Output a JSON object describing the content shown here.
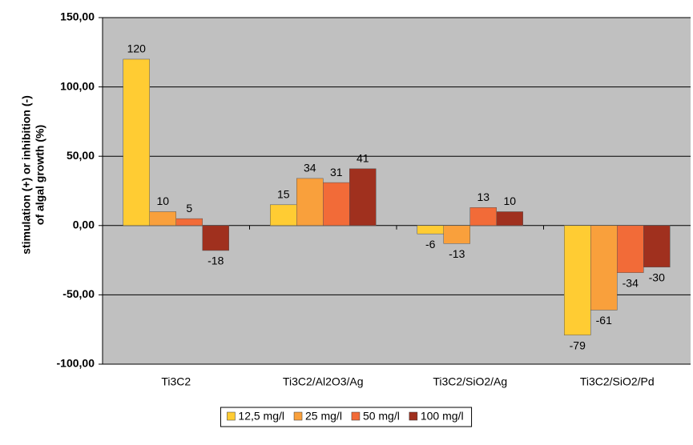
{
  "chart_data": {
    "type": "bar",
    "ylabel": [
      "stimulation (+) or inhibition (-)",
      "of algal growth (%)"
    ],
    "categories": [
      "Ti3C2",
      "Ti3C2/Al2O3/Ag",
      "Ti3C2/SiO2/Ag",
      "Ti3C2/SiO2/Pd"
    ],
    "series": [
      {
        "name": "12,5 mg/l",
        "color": "#ffcc33",
        "values": [
          120,
          15,
          -6,
          -79
        ]
      },
      {
        "name": "25 mg/l",
        "color": "#f9a03c",
        "values": [
          10,
          34,
          -13,
          -61
        ]
      },
      {
        "name": "50 mg/l",
        "color": "#f26b38",
        "values": [
          5,
          31,
          13,
          -34
        ]
      },
      {
        "name": "100 mg/l",
        "color": "#a0301e",
        "values": [
          -18,
          41,
          10,
          -30
        ]
      }
    ],
    "ylim": [
      -100,
      150
    ],
    "yticks": [
      {
        "value": -100,
        "label": "-100,00"
      },
      {
        "value": -50,
        "label": "-50,00"
      },
      {
        "value": 0,
        "label": "0,00"
      },
      {
        "value": 50,
        "label": "50,00"
      },
      {
        "value": 100,
        "label": "100,00"
      },
      {
        "value": 150,
        "label": "150,00"
      }
    ],
    "grid": true,
    "legend": "bottom"
  }
}
